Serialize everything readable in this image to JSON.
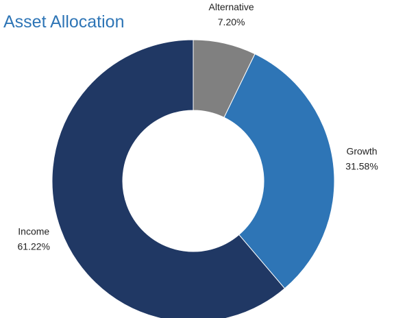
{
  "chart_data": {
    "type": "donut",
    "title": "Asset Allocation",
    "categories": [
      "Alternative",
      "Growth",
      "Income"
    ],
    "values": [
      7.2,
      31.58,
      61.22
    ],
    "value_labels": [
      "7.20%",
      "31.58%",
      "61.22%"
    ],
    "colors": [
      "#808080",
      "#2e75b6",
      "#203864"
    ]
  }
}
